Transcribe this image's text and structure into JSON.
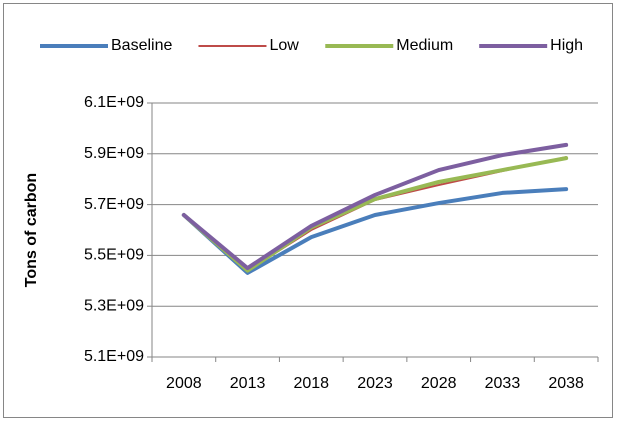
{
  "chart_data": {
    "type": "line",
    "y_label": "Tons of carbon",
    "categories": [
      "2008",
      "2013",
      "2018",
      "2023",
      "2028",
      "2033",
      "2038"
    ],
    "series": [
      {
        "name": "Baseline",
        "color": "#4a7ebb",
        "width": 4,
        "values": [
          5659000000,
          5431000000,
          5572000000,
          5659000000,
          5706000000,
          5746000000,
          5761000000
        ]
      },
      {
        "name": "Low",
        "color": "#be4b48",
        "width": 2,
        "values": [
          5659000000,
          5440000000,
          5600000000,
          5718000000,
          5777000000,
          5832000000,
          5887000000
        ]
      },
      {
        "name": "Medium",
        "color": "#98b954",
        "width": 4,
        "values": [
          5659000000,
          5440000000,
          5610000000,
          5722000000,
          5789000000,
          5836000000,
          5883000000
        ]
      },
      {
        "name": "High",
        "color": "#7d5fa0",
        "width": 4,
        "values": [
          5659000000,
          5450000000,
          5616000000,
          5738000000,
          5836000000,
          5895000000,
          5935000000
        ]
      }
    ],
    "ylim": [
      5100000000,
      6100000000
    ],
    "yticks": [
      {
        "value": 5100000000,
        "label": "5.1E+09"
      },
      {
        "value": 5300000000,
        "label": "5.3E+09"
      },
      {
        "value": 5500000000,
        "label": "5.5E+09"
      },
      {
        "value": 5700000000,
        "label": "5.7E+09"
      },
      {
        "value": 5900000000,
        "label": "5.9E+09"
      },
      {
        "value": 6100000000,
        "label": "6.1E+09"
      }
    ],
    "grid": true,
    "legend": "top"
  }
}
